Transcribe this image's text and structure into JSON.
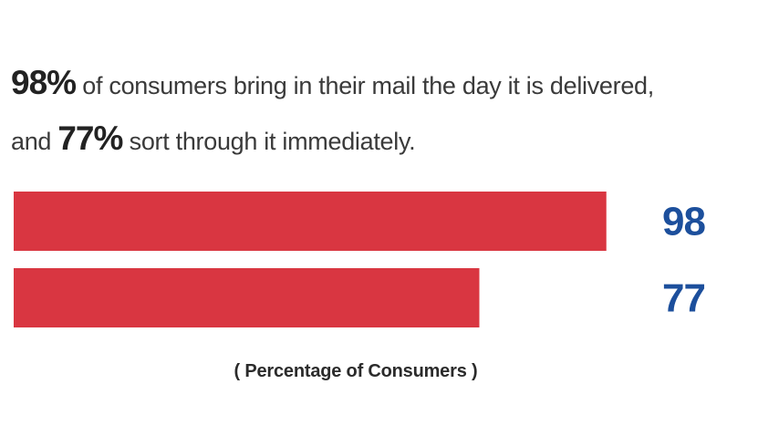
{
  "headline": {
    "stat1": "98%",
    "text1": " of consumers bring in their mail the day it is delivered,",
    "text2a": "and ",
    "stat2": "77%",
    "text2b": " sort through it immediately."
  },
  "chart_data": {
    "type": "bar",
    "orientation": "horizontal",
    "categories": [
      "",
      ""
    ],
    "values": [
      98,
      77
    ],
    "value_labels": [
      "98",
      "77"
    ],
    "xlabel": "( Percentage of Consumers )",
    "xlim": [
      0,
      100
    ],
    "grid": false,
    "bar_color": "#d93641",
    "label_color": "#1c4f9c"
  }
}
